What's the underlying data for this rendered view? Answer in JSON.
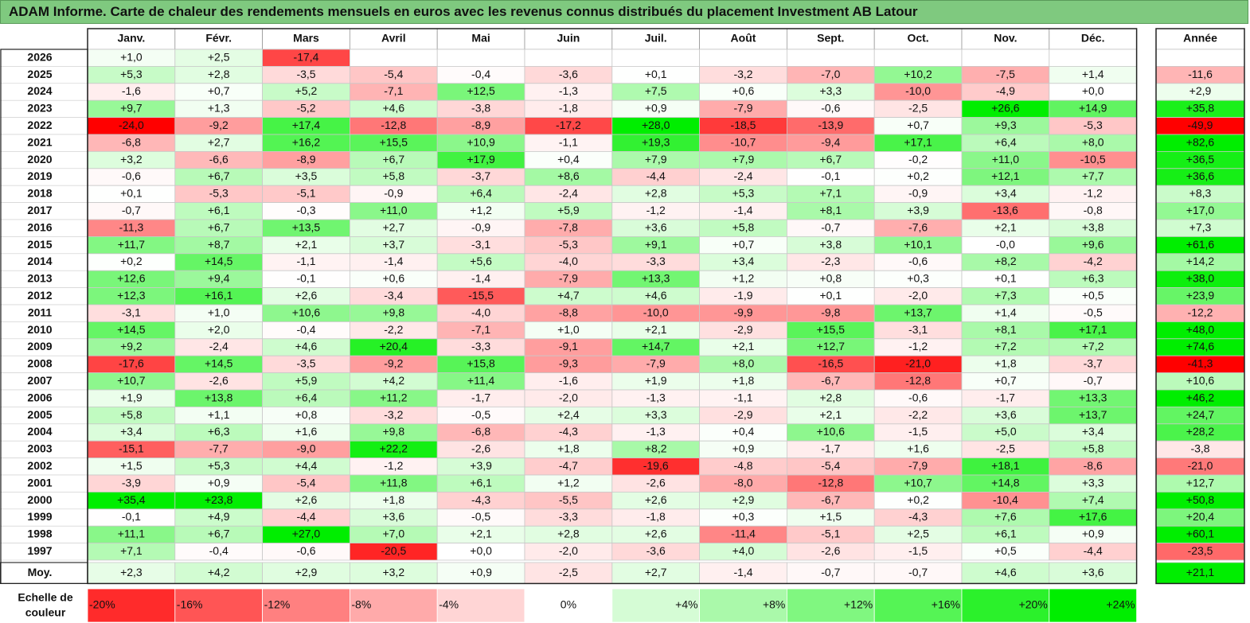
{
  "title": "ADAM Informe. Carte de chaleur des rendements mensuels en euros avec les revenus connus distribués du placement Investment AB Latour",
  "chart_data": {
    "type": "heatmap",
    "months": [
      "Janv.",
      "Févr.",
      "Mars",
      "Avril",
      "Mai",
      "Juin",
      "Juil.",
      "Août",
      "Sept.",
      "Oct.",
      "Nov.",
      "Déc."
    ],
    "year_header": "Année",
    "rows": [
      {
        "label": "2026",
        "values": [
          1.0,
          2.5,
          -17.4,
          null,
          null,
          null,
          null,
          null,
          null,
          null,
          null,
          null
        ],
        "year": null
      },
      {
        "label": "2025",
        "values": [
          5.3,
          2.8,
          -3.5,
          -5.4,
          -0.4,
          -3.6,
          0.1,
          -3.2,
          -7.0,
          10.2,
          -7.5,
          1.4
        ],
        "year": -11.6
      },
      {
        "label": "2024",
        "values": [
          -1.6,
          0.7,
          5.2,
          -7.1,
          12.5,
          -1.3,
          7.5,
          0.6,
          3.3,
          -10.0,
          -4.9,
          0.0
        ],
        "year": 2.9
      },
      {
        "label": "2023",
        "values": [
          9.7,
          1.3,
          -5.2,
          4.6,
          -3.8,
          -1.8,
          0.9,
          -7.9,
          -0.6,
          -2.5,
          26.6,
          14.9
        ],
        "year": 35.8
      },
      {
        "label": "2022",
        "values": [
          -24.0,
          -9.2,
          17.4,
          -12.8,
          -8.9,
          -17.2,
          28.0,
          -18.5,
          -13.9,
          0.7,
          9.3,
          -5.3
        ],
        "year": -49.9
      },
      {
        "label": "2021",
        "values": [
          -6.8,
          2.7,
          16.2,
          15.5,
          10.9,
          -1.1,
          19.3,
          -10.7,
          -9.4,
          17.1,
          6.4,
          8.0
        ],
        "year": 82.6
      },
      {
        "label": "2020",
        "values": [
          3.2,
          -6.6,
          -8.9,
          6.7,
          17.9,
          0.4,
          7.9,
          7.9,
          6.7,
          -0.2,
          11.0,
          -10.5
        ],
        "year": 36.5
      },
      {
        "label": "2019",
        "values": [
          -0.6,
          6.7,
          3.5,
          5.8,
          -3.7,
          8.6,
          -4.4,
          -2.4,
          -0.1,
          0.2,
          12.1,
          7.7
        ],
        "year": 36.6
      },
      {
        "label": "2018",
        "values": [
          0.1,
          -5.3,
          -5.1,
          -0.9,
          6.4,
          -2.4,
          2.8,
          5.3,
          7.1,
          -0.9,
          3.4,
          -1.2
        ],
        "year": 8.3
      },
      {
        "label": "2017",
        "values": [
          -0.7,
          6.1,
          -0.3,
          11.0,
          1.2,
          5.9,
          -1.2,
          -1.4,
          8.1,
          3.9,
          -13.6,
          -0.8
        ],
        "year": 17.0
      },
      {
        "label": "2016",
        "values": [
          -11.3,
          6.7,
          13.5,
          2.7,
          -0.9,
          -7.8,
          3.6,
          5.8,
          -0.7,
          -7.6,
          2.1,
          3.8
        ],
        "year": 7.3
      },
      {
        "label": "2015",
        "values": [
          11.7,
          8.7,
          2.1,
          3.7,
          -3.1,
          -5.3,
          9.1,
          0.7,
          3.8,
          10.1,
          -0.0,
          9.6
        ],
        "year": 61.6
      },
      {
        "label": "2014",
        "values": [
          0.2,
          14.5,
          -1.1,
          -1.4,
          5.6,
          -4.0,
          -3.3,
          3.4,
          -2.3,
          -0.6,
          8.2,
          -4.2
        ],
        "year": 14.2
      },
      {
        "label": "2013",
        "values": [
          12.6,
          9.4,
          -0.1,
          0.6,
          -1.4,
          -7.9,
          13.3,
          1.2,
          0.8,
          0.3,
          0.1,
          6.3
        ],
        "year": 38.0
      },
      {
        "label": "2012",
        "values": [
          12.3,
          16.1,
          2.6,
          -3.4,
          -15.5,
          4.7,
          4.6,
          -1.9,
          0.1,
          -2.0,
          7.3,
          0.5
        ],
        "year": 23.9
      },
      {
        "label": "2011",
        "values": [
          -3.1,
          1.0,
          10.6,
          9.8,
          -4.0,
          -8.8,
          -10.0,
          -9.9,
          -9.8,
          13.7,
          1.4,
          -0.5
        ],
        "year": -12.2
      },
      {
        "label": "2010",
        "values": [
          14.5,
          2.0,
          -0.4,
          -2.2,
          -7.1,
          1.0,
          2.1,
          -2.9,
          15.5,
          -3.1,
          8.1,
          17.1
        ],
        "year": 48.0
      },
      {
        "label": "2009",
        "values": [
          9.2,
          -2.4,
          4.6,
          20.4,
          -3.3,
          -9.1,
          14.7,
          2.1,
          12.7,
          -1.2,
          7.2,
          7.2
        ],
        "year": 74.6
      },
      {
        "label": "2008",
        "values": [
          -17.6,
          14.5,
          -3.5,
          -9.2,
          15.8,
          -9.3,
          -7.9,
          8.0,
          -16.5,
          -21.0,
          1.8,
          -3.7
        ],
        "year": -41.3
      },
      {
        "label": "2007",
        "values": [
          10.7,
          -2.6,
          5.9,
          4.2,
          11.4,
          -1.6,
          1.9,
          1.8,
          -6.7,
          -12.8,
          0.7,
          -0.7
        ],
        "year": 10.6
      },
      {
        "label": "2006",
        "values": [
          1.9,
          13.8,
          6.4,
          11.2,
          -1.7,
          -2.0,
          -1.3,
          -1.1,
          2.8,
          -0.6,
          -1.7,
          13.3
        ],
        "year": 46.2
      },
      {
        "label": "2005",
        "values": [
          5.8,
          1.1,
          0.8,
          -3.2,
          -0.5,
          2.4,
          3.3,
          -2.9,
          2.1,
          -2.2,
          3.6,
          13.7
        ],
        "year": 24.7
      },
      {
        "label": "2004",
        "values": [
          3.4,
          6.3,
          1.6,
          9.8,
          -6.8,
          -4.3,
          -1.3,
          0.4,
          10.6,
          -1.5,
          5.0,
          3.4
        ],
        "year": 28.2
      },
      {
        "label": "2003",
        "values": [
          -15.1,
          -7.7,
          -9.0,
          22.2,
          -2.6,
          1.8,
          8.2,
          0.9,
          -1.7,
          1.6,
          -2.5,
          5.8
        ],
        "year": -3.8
      },
      {
        "label": "2002",
        "values": [
          1.5,
          5.3,
          4.4,
          -1.2,
          3.9,
          -4.7,
          -19.6,
          -4.8,
          -5.4,
          -7.9,
          18.1,
          -8.6
        ],
        "year": -21.0
      },
      {
        "label": "2001",
        "values": [
          -3.9,
          0.9,
          -5.4,
          11.8,
          6.1,
          1.2,
          -2.6,
          -8.0,
          -12.8,
          10.7,
          14.8,
          3.3
        ],
        "year": 12.7
      },
      {
        "label": "2000",
        "values": [
          35.4,
          23.8,
          2.6,
          1.8,
          -4.3,
          -5.5,
          2.6,
          2.9,
          -6.7,
          0.2,
          -10.4,
          7.4
        ],
        "year": 50.8
      },
      {
        "label": "1999",
        "values": [
          -0.1,
          4.9,
          -4.4,
          3.6,
          -0.5,
          -3.3,
          -1.8,
          0.3,
          1.5,
          -4.3,
          7.6,
          17.6
        ],
        "year": 20.4
      },
      {
        "label": "1998",
        "values": [
          11.1,
          6.7,
          27.0,
          7.0,
          2.1,
          2.8,
          2.6,
          -11.4,
          -5.1,
          2.5,
          6.1,
          0.9
        ],
        "year": 60.1
      },
      {
        "label": "1997",
        "values": [
          7.1,
          -0.4,
          -0.6,
          -20.5,
          0.0,
          -2.0,
          -3.6,
          4.0,
          -2.6,
          -1.5,
          0.5,
          -4.4
        ],
        "year": -23.5
      }
    ],
    "average_row": {
      "label": "Moy.",
      "values": [
        2.3,
        4.2,
        2.9,
        3.2,
        0.9,
        -2.5,
        2.7,
        -1.4,
        -0.7,
        -0.7,
        4.6,
        3.6
      ],
      "year": 21.1
    },
    "scale": {
      "label_line1": "Echelle de",
      "label_line2": "couleur",
      "steps": [
        {
          "value": -20,
          "text": "-20%"
        },
        {
          "value": -16,
          "text": "-16%"
        },
        {
          "value": -12,
          "text": "-12%"
        },
        {
          "value": -8,
          "text": "-8%"
        },
        {
          "value": -4,
          "text": "-4%"
        },
        {
          "value": 0,
          "text": "0%"
        },
        {
          "value": 4,
          "text": "+4%"
        },
        {
          "value": 8,
          "text": "+8%"
        },
        {
          "value": 12,
          "text": "+12%"
        },
        {
          "value": 16,
          "text": "+16%"
        },
        {
          "value": 20,
          "text": "+20%"
        },
        {
          "value": 24,
          "text": "+24%"
        }
      ]
    },
    "colors": {
      "negative_max": "#ff0000",
      "neutral": "#ffffff",
      "positive_max": "#00ee00",
      "title_background": "#7fc97f"
    }
  }
}
